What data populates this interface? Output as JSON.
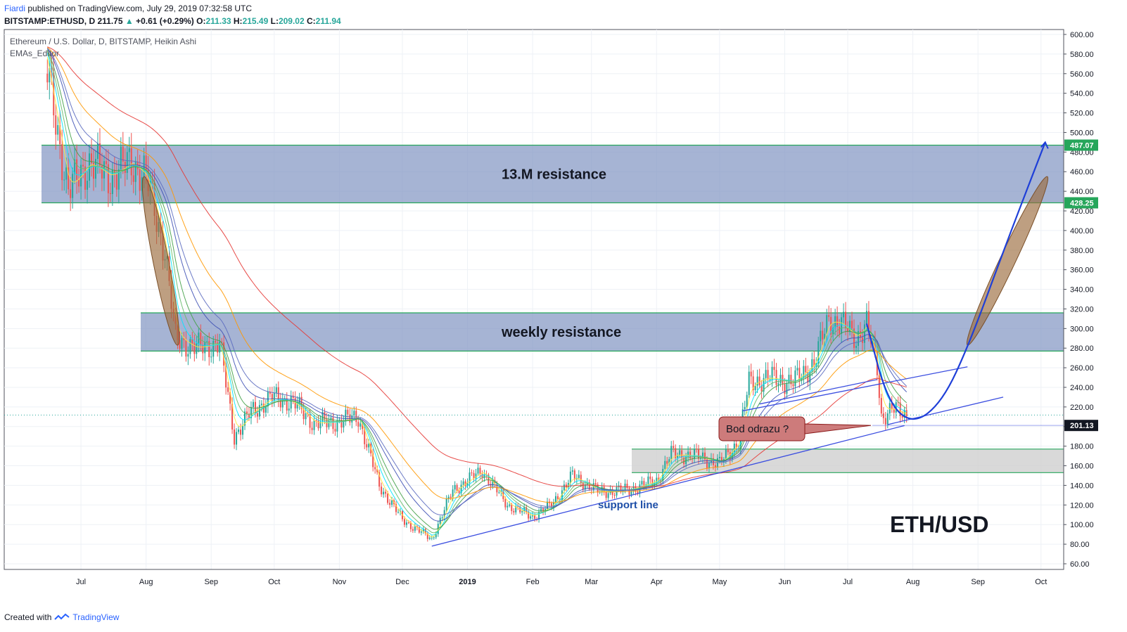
{
  "header": {
    "author": "Fiardi",
    "published_text": "published on TradingView.com, July 29, 2019 07:32:58 UTC",
    "symbol": "BITSTAMP:ETHUSD, D",
    "last": "211.75",
    "up_arrow": "▲",
    "change": "+0.61 (+0.29%)",
    "o_label": "O:",
    "o": "211.33",
    "h_label": "H:",
    "h": "215.49",
    "l_label": "L:",
    "l": "209.02",
    "c_label": "C:",
    "c": "211.94"
  },
  "footer": {
    "created_with": "Created with",
    "brand": "TradingView",
    "logo_icon": "tradingview-logo-icon"
  },
  "colors": {
    "zone_fill": "#8497c4",
    "zone_border": "#26a65b",
    "gray_zone": "#d0d0d0",
    "bull": "#26a69a",
    "bear": "#ef5350",
    "projection": "#1e3fd8",
    "oval": "#9b6b3d",
    "trendline": "#3b4ee0",
    "label_bg": "#cd7b7b"
  },
  "chart_data": {
    "type": "candlestick",
    "title": "Ethereum / U.S. Dollar, D, BITSTAMP, Heikin Ashi",
    "indicator": "EMAs_Editor",
    "ylim": [
      55,
      607
    ],
    "y_ticks": [
      "600.00",
      "580.00",
      "560.00",
      "540.00",
      "520.00",
      "500.00",
      "480.00",
      "460.00",
      "440.00",
      "420.00",
      "400.00",
      "380.00",
      "360.00",
      "340.00",
      "320.00",
      "300.00",
      "280.00",
      "260.00",
      "240.00",
      "220.00",
      "200.00",
      "180.00",
      "160.00",
      "140.00",
      "120.00",
      "100.00",
      "80.00",
      "60.00"
    ],
    "x_ticks": [
      "Jul",
      "Aug",
      "Sep",
      "Oct",
      "Nov",
      "Dec",
      "2019",
      "Feb",
      "Mar",
      "Apr",
      "May",
      "Jun",
      "Jul",
      "Aug",
      "Sep",
      "Oct"
    ],
    "price_markers": [
      {
        "label": "487.07",
        "value": 487.07,
        "color": "#26a65b"
      },
      {
        "label": "428.25",
        "value": 428.25,
        "color": "#26a65b"
      },
      {
        "label": "201.13",
        "value": 201.13,
        "color": "#131722"
      }
    ],
    "current_price_line": 211.75,
    "zones": [
      {
        "label": "13.M resistance",
        "from": 428.25,
        "to": 487.07
      },
      {
        "label": "weekly resistance",
        "from": 277,
        "to": 316
      },
      {
        "label": "",
        "from": 153,
        "to": 177
      }
    ],
    "annotations": {
      "support": "support line",
      "bounce": "Bod odrazu ?",
      "pair": "ETH/USD"
    },
    "price_path": [
      [
        "2018-06-15",
        560
      ],
      [
        "2018-06-25",
        440
      ],
      [
        "2018-07-05",
        470
      ],
      [
        "2018-07-15",
        455
      ],
      [
        "2018-07-25",
        470
      ],
      [
        "2018-08-01",
        455
      ],
      [
        "2018-08-10",
        380
      ],
      [
        "2018-08-15",
        290
      ],
      [
        "2018-08-25",
        280
      ],
      [
        "2018-09-05",
        285
      ],
      [
        "2018-09-12",
        190
      ],
      [
        "2018-09-20",
        215
      ],
      [
        "2018-09-30",
        230
      ],
      [
        "2018-10-10",
        225
      ],
      [
        "2018-10-20",
        203
      ],
      [
        "2018-11-01",
        205
      ],
      [
        "2018-11-10",
        210
      ],
      [
        "2018-11-20",
        140
      ],
      [
        "2018-12-01",
        105
      ],
      [
        "2018-12-15",
        85
      ],
      [
        "2018-12-25",
        135
      ],
      [
        "2019-01-08",
        155
      ],
      [
        "2019-01-20",
        120
      ],
      [
        "2019-02-01",
        108
      ],
      [
        "2019-02-10",
        120
      ],
      [
        "2019-02-20",
        150
      ],
      [
        "2019-03-05",
        133
      ],
      [
        "2019-03-20",
        136
      ],
      [
        "2019-04-01",
        145
      ],
      [
        "2019-04-08",
        172
      ],
      [
        "2019-04-20",
        170
      ],
      [
        "2019-05-01",
        162
      ],
      [
        "2019-05-10",
        185
      ],
      [
        "2019-05-15",
        245
      ],
      [
        "2019-05-25",
        250
      ],
      [
        "2019-06-05",
        245
      ],
      [
        "2019-06-15",
        265
      ],
      [
        "2019-06-22",
        310
      ],
      [
        "2019-06-28",
        305
      ],
      [
        "2019-07-05",
        290
      ],
      [
        "2019-07-10",
        305
      ],
      [
        "2019-07-15",
        260
      ],
      [
        "2019-07-17",
        210
      ],
      [
        "2019-07-22",
        218
      ],
      [
        "2019-07-29",
        211.75
      ]
    ],
    "projection_path": [
      [
        "2019-07-10",
        305
      ],
      [
        "2019-07-20",
        225
      ],
      [
        "2019-08-01",
        202
      ],
      [
        "2019-08-15",
        225
      ],
      [
        "2019-08-28",
        285
      ],
      [
        "2019-09-15",
        390
      ],
      [
        "2019-10-03",
        490
      ]
    ]
  }
}
